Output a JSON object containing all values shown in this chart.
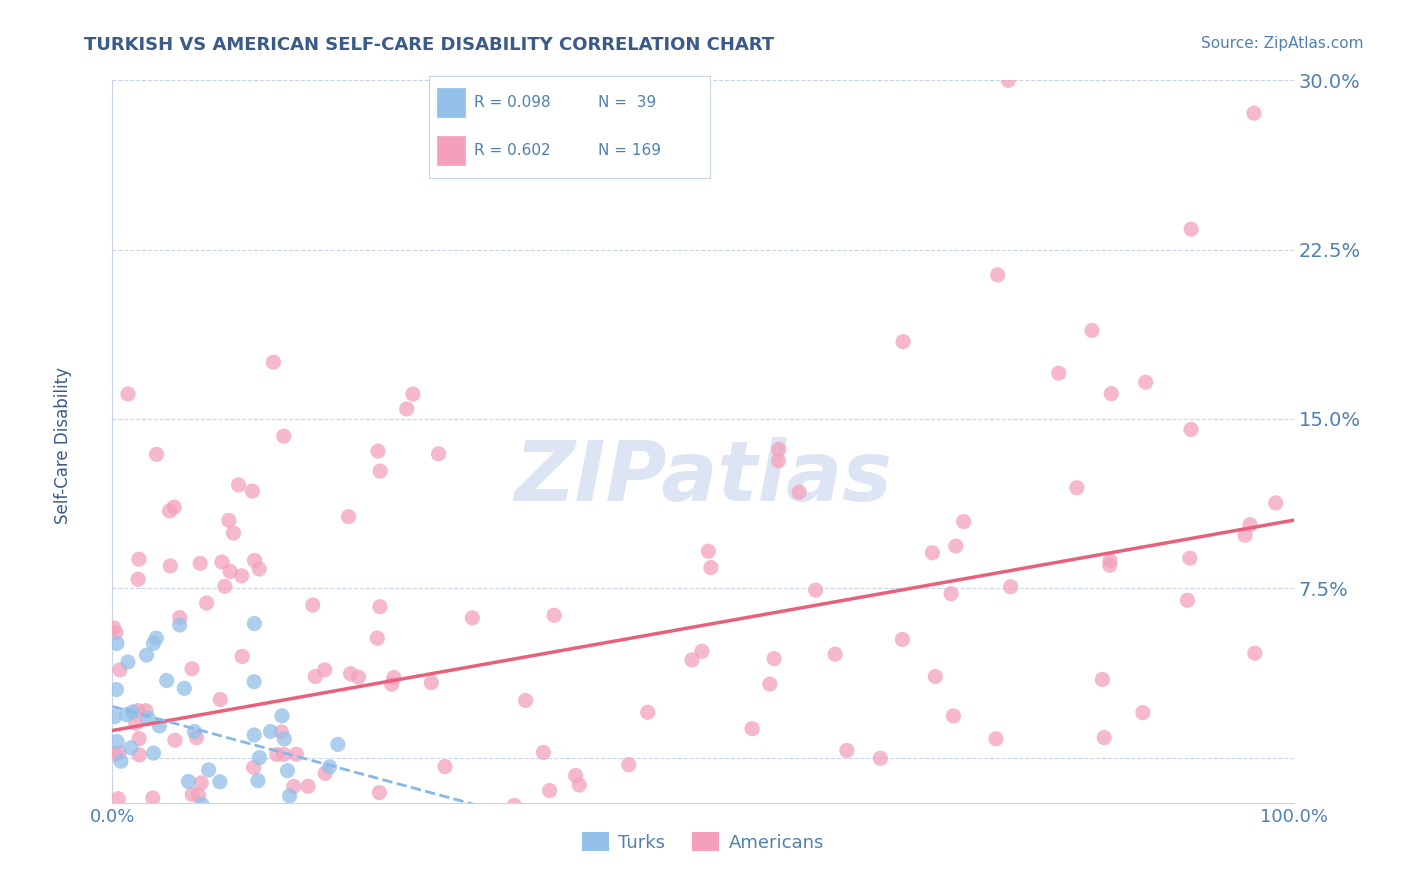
{
  "title": "TURKISH VS AMERICAN SELF-CARE DISABILITY CORRELATION CHART",
  "source": "Source: ZipAtlas.com",
  "ylabel": "Self-Care Disability",
  "xlim": [
    0,
    100
  ],
  "ylim": [
    -2,
    30
  ],
  "yticks": [
    0,
    7.5,
    15.0,
    22.5,
    30.0
  ],
  "ytick_labels": [
    "",
    "7.5%",
    "15.0%",
    "22.5%",
    "30.0%"
  ],
  "xtick_labels": [
    "0.0%",
    "100.0%"
  ],
  "turks_color": "#92c0e8",
  "americans_color": "#f4a0bc",
  "turks_line_color": "#85b8e8",
  "americans_line_color": "#e8607a",
  "background_color": "#ffffff",
  "grid_color": "#c8d4e8",
  "title_color": "#3a5a8a",
  "axis_label_color": "#3a5a8a",
  "tick_label_color": "#5080b0",
  "watermark_color": "#dde5f5",
  "legend_r1": "R = 0.098",
  "legend_n1": "N =  39",
  "legend_r2": "R = 0.602",
  "legend_n2": "N = 169"
}
